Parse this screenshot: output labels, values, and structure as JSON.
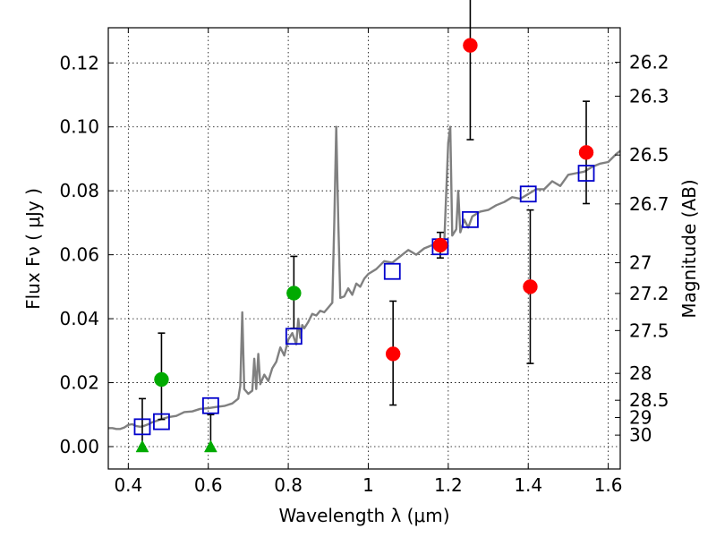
{
  "chart_data": {
    "type": "scatter",
    "title": "",
    "xlabel": "Wavelength  λ (μm)",
    "ylabel_left": "Flux  Fν  ( μJy )",
    "ylabel_right": "Magnitude (AB)",
    "xlim": [
      0.35,
      1.63
    ],
    "ylim": [
      -0.007,
      0.131
    ],
    "grid": true,
    "x_ticks": [
      0.4,
      0.6,
      0.8,
      1.0,
      1.2,
      1.4,
      1.6
    ],
    "x_tick_labels": [
      "0.4",
      "0.6",
      "0.8",
      "1",
      "1.2",
      "1.4",
      "1.6"
    ],
    "y_ticks": [
      0.0,
      0.02,
      0.04,
      0.06,
      0.08,
      0.1,
      0.12
    ],
    "y_tick_labels": [
      "0.00",
      "0.02",
      "0.04",
      "0.06",
      "0.08",
      "0.10",
      "0.12"
    ],
    "right_ticks": [
      {
        "label": "26.2",
        "flux": 0.1202
      },
      {
        "label": "26.3",
        "flux": 0.1096
      },
      {
        "label": "26.5",
        "flux": 0.0912
      },
      {
        "label": "26.7",
        "flux": 0.0759
      },
      {
        "label": "27",
        "flux": 0.0575
      },
      {
        "label": "27.2",
        "flux": 0.0479
      },
      {
        "label": "27.5",
        "flux": 0.0363
      },
      {
        "label": "28",
        "flux": 0.0229
      },
      {
        "label": "28.5",
        "flux": 0.0145
      },
      {
        "label": "29",
        "flux": 0.0091
      },
      {
        "label": "30",
        "flux": 0.0036
      }
    ],
    "colors": {
      "model": "#808080",
      "red": "#ff0000",
      "green": "#00aa00",
      "box": "#0000cc",
      "errorbar": "#000000",
      "grid": "#000000"
    },
    "series": [
      {
        "name": "model spectrum",
        "kind": "line",
        "x": [
          0.35,
          0.36,
          0.37,
          0.38,
          0.39,
          0.4,
          0.41,
          0.42,
          0.43,
          0.44,
          0.45,
          0.46,
          0.47,
          0.48,
          0.5,
          0.52,
          0.54,
          0.56,
          0.58,
          0.6,
          0.62,
          0.64,
          0.66,
          0.675,
          0.68,
          0.685,
          0.69,
          0.7,
          0.71,
          0.715,
          0.72,
          0.725,
          0.73,
          0.74,
          0.75,
          0.76,
          0.77,
          0.78,
          0.79,
          0.8,
          0.81,
          0.82,
          0.825,
          0.83,
          0.835,
          0.84,
          0.85,
          0.86,
          0.87,
          0.88,
          0.89,
          0.9,
          0.91,
          0.915,
          0.92,
          0.925,
          0.93,
          0.94,
          0.95,
          0.96,
          0.97,
          0.98,
          0.99,
          1.0,
          1.02,
          1.04,
          1.06,
          1.08,
          1.1,
          1.12,
          1.14,
          1.16,
          1.18,
          1.19,
          1.2,
          1.205,
          1.21,
          1.22,
          1.225,
          1.23,
          1.24,
          1.25,
          1.26,
          1.28,
          1.3,
          1.32,
          1.34,
          1.36,
          1.38,
          1.4,
          1.42,
          1.44,
          1.46,
          1.48,
          1.5,
          1.52,
          1.54,
          1.56,
          1.58,
          1.6,
          1.62,
          1.63
        ],
        "y": [
          0.0058,
          0.0058,
          0.0055,
          0.0055,
          0.006,
          0.0068,
          0.007,
          0.0064,
          0.0062,
          0.0065,
          0.007,
          0.0076,
          0.008,
          0.0085,
          0.0092,
          0.0096,
          0.0108,
          0.011,
          0.0118,
          0.012,
          0.0124,
          0.0127,
          0.0135,
          0.015,
          0.019,
          0.042,
          0.018,
          0.0165,
          0.0175,
          0.0275,
          0.018,
          0.029,
          0.0195,
          0.0225,
          0.0205,
          0.0245,
          0.0265,
          0.031,
          0.0285,
          0.0335,
          0.0355,
          0.032,
          0.04,
          0.034,
          0.038,
          0.037,
          0.039,
          0.0415,
          0.041,
          0.0425,
          0.042,
          0.0435,
          0.045,
          0.07,
          0.1,
          0.07,
          0.0465,
          0.047,
          0.0495,
          0.0475,
          0.051,
          0.05,
          0.0525,
          0.054,
          0.0555,
          0.058,
          0.0575,
          0.0595,
          0.0615,
          0.06,
          0.062,
          0.063,
          0.063,
          0.064,
          0.095,
          0.1,
          0.066,
          0.068,
          0.08,
          0.067,
          0.071,
          0.0685,
          0.072,
          0.0735,
          0.074,
          0.0755,
          0.0765,
          0.078,
          0.0775,
          0.079,
          0.0805,
          0.0805,
          0.083,
          0.0815,
          0.085,
          0.0855,
          0.086,
          0.0875,
          0.0885,
          0.089,
          0.0915,
          0.0925
        ]
      },
      {
        "name": "model photometry",
        "kind": "open-square",
        "x": [
          0.435,
          0.483,
          0.606,
          0.814,
          1.06,
          1.18,
          1.255,
          1.4,
          1.545
        ],
        "y": [
          0.0062,
          0.0078,
          0.0128,
          0.0345,
          0.0548,
          0.0625,
          0.071,
          0.079,
          0.0855
        ]
      },
      {
        "name": "observed (green)",
        "kind": "circle-error",
        "x": [
          0.483,
          0.814
        ],
        "y": [
          0.021,
          0.048
        ],
        "err_low": [
          0.0125,
          0.011
        ],
        "err_high": [
          0.0145,
          0.0115
        ]
      },
      {
        "name": "observed (red)",
        "kind": "circle-error",
        "x": [
          1.062,
          1.18,
          1.255,
          1.405,
          1.545
        ],
        "y": [
          0.029,
          0.063,
          0.1255,
          0.05,
          0.092
        ],
        "err_low": [
          0.016,
          0.004,
          0.0295,
          0.024,
          0.016
        ],
        "err_high": [
          0.0165,
          0.004,
          0.03,
          0.024,
          0.016
        ]
      },
      {
        "name": "upper limits (green)",
        "kind": "triangle-error",
        "x": [
          0.435,
          0.606
        ],
        "y": [
          0.0,
          0.0
        ],
        "err_high": [
          0.015,
          0.01
        ]
      }
    ]
  }
}
